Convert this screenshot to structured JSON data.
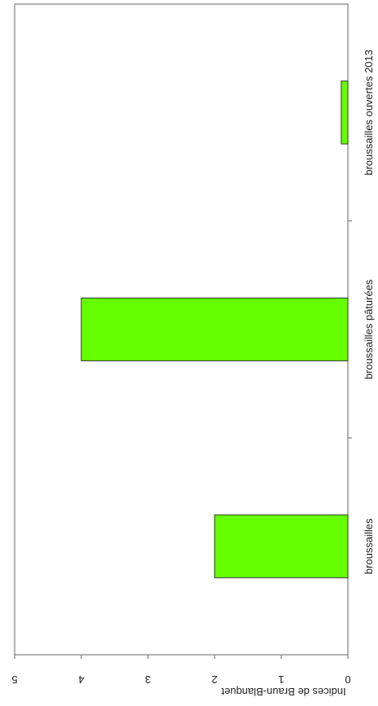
{
  "chart_data": {
    "type": "bar",
    "orientation": "rotated",
    "categories": [
      "broussailles",
      "broussailles pâturées",
      "broussailles ouvertes 2013"
    ],
    "values": [
      2,
      4,
      0.1
    ],
    "title": "",
    "xlabel": "",
    "ylabel": "Indices de Braun-Blanquet",
    "ylim": [
      0,
      5
    ],
    "yticks": [
      "0",
      "1",
      "2",
      "3",
      "4",
      "5"
    ],
    "grid": false,
    "legend": "none",
    "colors": {
      "bar_fill": "#66ff00",
      "bar_stroke": "#333333",
      "axis": "#666666",
      "text": "#222222"
    }
  }
}
